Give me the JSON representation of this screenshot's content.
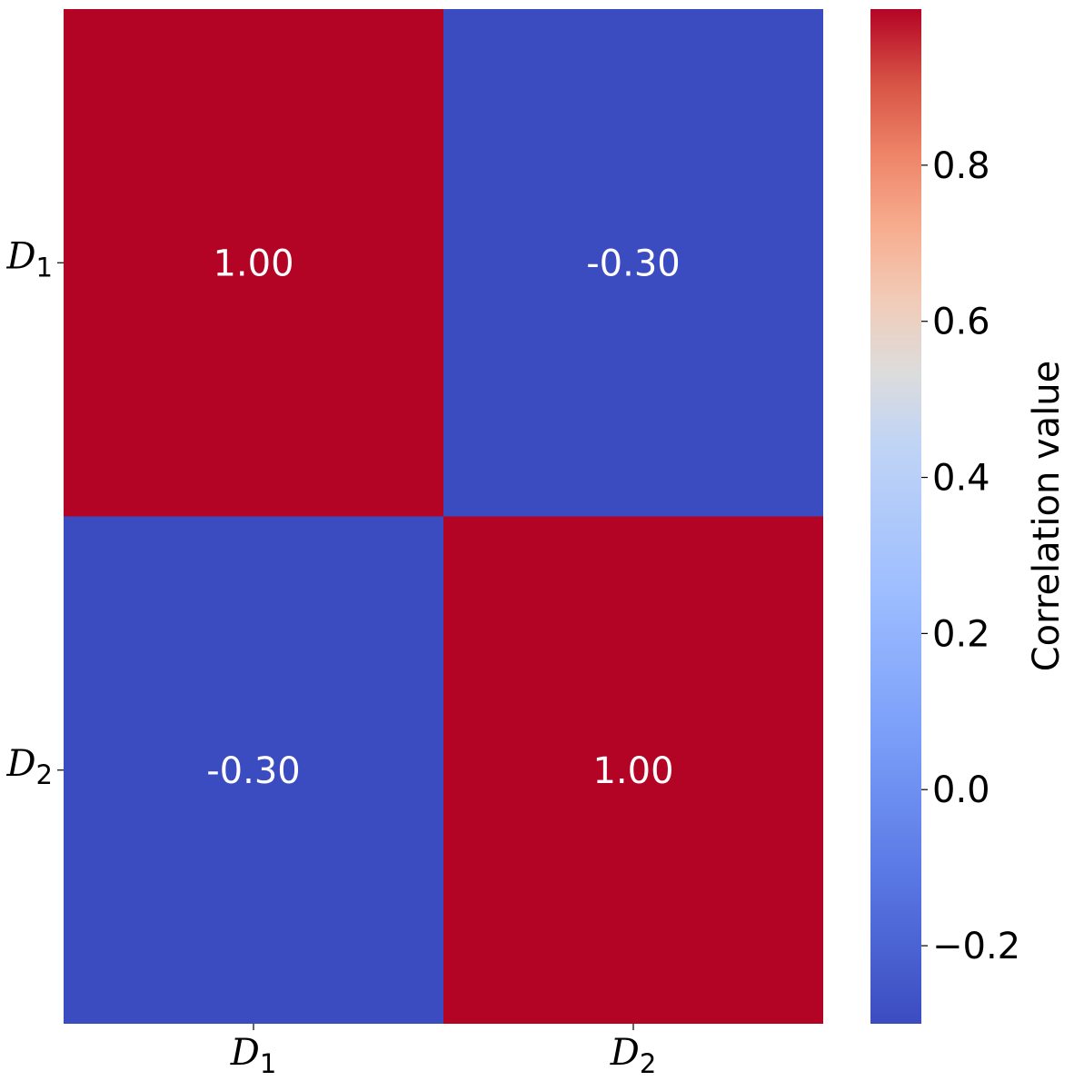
{
  "chart_data": {
    "type": "heatmap",
    "title": "",
    "x_categories": [
      "D1",
      "D2"
    ],
    "y_categories": [
      "D1",
      "D2"
    ],
    "x_labels": [
      {
        "base": "D",
        "sub": "1"
      },
      {
        "base": "D",
        "sub": "2"
      }
    ],
    "y_labels": [
      {
        "base": "D",
        "sub": "1"
      },
      {
        "base": "D",
        "sub": "2"
      }
    ],
    "values": [
      [
        1.0,
        -0.3
      ],
      [
        -0.3,
        1.0
      ]
    ],
    "cell_labels": [
      [
        "1.00",
        "-0.30"
      ],
      [
        "-0.30",
        "1.00"
      ]
    ],
    "colormap": "coolwarm",
    "colorbar": {
      "label": "Correlation value",
      "vmin": -0.3,
      "vmax": 1.0,
      "ticks": [
        -0.2,
        0.0,
        0.2,
        0.4,
        0.6,
        0.8
      ],
      "tick_labels": [
        "−0.2",
        "0.0",
        "0.2",
        "0.4",
        "0.6",
        "0.8"
      ]
    },
    "colors": {
      "high": "#b40426",
      "low": "#3b4cc0",
      "cell_text": "#ffffff"
    }
  }
}
